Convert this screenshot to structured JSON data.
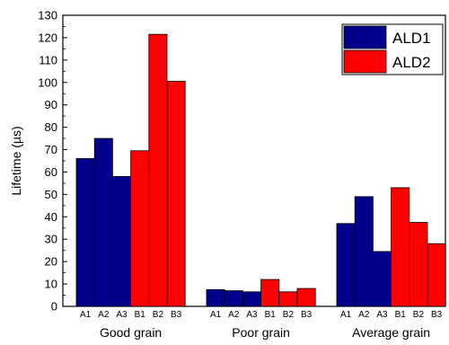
{
  "chart_data": {
    "type": "bar",
    "ylabel": "Lifetime (µs)",
    "ylim": [
      0,
      130
    ],
    "yticks": [
      0,
      10,
      20,
      30,
      40,
      50,
      60,
      70,
      80,
      90,
      100,
      110,
      120,
      130
    ],
    "grid": false,
    "legend_position": "top-right",
    "groups": [
      {
        "label": "Good grain",
        "bars": [
          {
            "label": "A1",
            "value": 66,
            "series": "ALD1"
          },
          {
            "label": "A2",
            "value": 75,
            "series": "ALD1"
          },
          {
            "label": "A3",
            "value": 58,
            "series": "ALD1"
          },
          {
            "label": "B1",
            "value": 69.5,
            "series": "ALD2"
          },
          {
            "label": "B2",
            "value": 121.5,
            "series": "ALD2"
          },
          {
            "label": "B3",
            "value": 100.5,
            "series": "ALD2"
          }
        ]
      },
      {
        "label": "Poor grain",
        "bars": [
          {
            "label": "A1",
            "value": 7.5,
            "series": "ALD1"
          },
          {
            "label": "A2",
            "value": 7,
            "series": "ALD1"
          },
          {
            "label": "A3",
            "value": 6.5,
            "series": "ALD1"
          },
          {
            "label": "B1",
            "value": 12,
            "series": "ALD2"
          },
          {
            "label": "B2",
            "value": 6.5,
            "series": "ALD2"
          },
          {
            "label": "B3",
            "value": 8,
            "series": "ALD2"
          }
        ]
      },
      {
        "label": "Average grain",
        "bars": [
          {
            "label": "A1",
            "value": 37,
            "series": "ALD1"
          },
          {
            "label": "A2",
            "value": 49,
            "series": "ALD1"
          },
          {
            "label": "A3",
            "value": 24.5,
            "series": "ALD1"
          },
          {
            "label": "B1",
            "value": 53,
            "series": "ALD2"
          },
          {
            "label": "B2",
            "value": 37.5,
            "series": "ALD2"
          },
          {
            "label": "B3",
            "value": 28,
            "series": "ALD2"
          }
        ]
      }
    ],
    "series": [
      {
        "name": "ALD1",
        "color": "#00008b"
      },
      {
        "name": "ALD2",
        "color": "#ff0000"
      }
    ]
  }
}
